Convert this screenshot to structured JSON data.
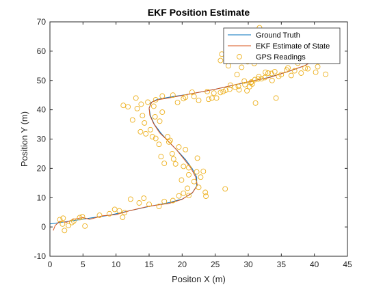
{
  "chart_data": {
    "type": "line",
    "title": "EKF Position Estimate",
    "xlabel": "Positon X (m)",
    "ylabel": "Position Y (m)",
    "xlim": [
      0,
      45
    ],
    "ylim": [
      -10,
      70
    ],
    "xticks": [
      0,
      5,
      10,
      15,
      20,
      25,
      30,
      35,
      40,
      45
    ],
    "yticks": [
      -10,
      0,
      10,
      20,
      30,
      40,
      50,
      60,
      70
    ],
    "grid": false,
    "legend_position": "top-right",
    "series": [
      {
        "name": "Ground Truth",
        "kind": "line",
        "color": "#0072BD",
        "x": [
          0,
          3,
          6,
          9,
          12,
          15,
          18,
          20,
          21.5,
          22.2,
          22.2,
          21.5,
          20.5,
          19.3,
          18,
          16.8,
          15.8,
          15.2,
          15.0,
          15.3,
          16.2,
          18,
          21,
          25,
          29,
          33,
          36,
          38.5,
          40
        ],
        "y": [
          1,
          2,
          3,
          4,
          5.5,
          7,
          8.3,
          9.5,
          11.5,
          14,
          17,
          20,
          23,
          26,
          29,
          32,
          35,
          38,
          40.5,
          42.5,
          43.5,
          44.3,
          45.3,
          47,
          49,
          51,
          53,
          55,
          57
        ]
      },
      {
        "name": "EKF Estimate of State",
        "kind": "line",
        "color": "#D95319",
        "x": [
          0.5,
          0.8,
          1.5,
          2.5,
          3.5,
          5,
          6,
          8,
          10,
          12,
          15,
          18,
          20,
          21.6,
          22.3,
          22.0,
          21.3,
          20.3,
          19.2,
          17.9,
          16.6,
          15.7,
          15.1,
          15.0,
          15.4,
          16.3,
          18.2,
          21.2,
          25.2,
          29.2,
          33.2,
          36.2,
          38.6,
          40
        ],
        "y": [
          -1.2,
          0.5,
          2.0,
          1.6,
          2.6,
          3.2,
          2.6,
          3.8,
          4.2,
          5.5,
          7.1,
          8.0,
          9.4,
          11.8,
          14.2,
          17.2,
          20.2,
          23.1,
          26.2,
          29.3,
          32.1,
          35.2,
          38.1,
          40.6,
          42.6,
          43.4,
          44.1,
          45.4,
          47.1,
          49.2,
          51.0,
          53.2,
          55.1,
          57
        ]
      },
      {
        "name": "GPS Readings",
        "kind": "scatter",
        "color": "#EDB120",
        "x": [
          1.5,
          2.0,
          2.8,
          3.3,
          4.5,
          2.2,
          5.3,
          3.6,
          1.9,
          4.9,
          7.5,
          9.0,
          9.8,
          10.5,
          11.0,
          11.3,
          12.2,
          13.5,
          14.2,
          15.0,
          16.5,
          17.3,
          18.6,
          19.5,
          20.2,
          21.0,
          22.5,
          23.5,
          23.6,
          21.8,
          20.8,
          19.9,
          21.0,
          22.2,
          22.8,
          26.5,
          23.2,
          20.2,
          19.0,
          18.7,
          17.3,
          16.8,
          18.5,
          21.0,
          22.3,
          20.5,
          19.5,
          18.0,
          16.5,
          15.5,
          14.5,
          16.0,
          17.8,
          18.2,
          15.2,
          14.3,
          16.6,
          15.9,
          17.0,
          14.0,
          13.2,
          13.8,
          15.7,
          14.8,
          11.1,
          11.8,
          13.0,
          16.0,
          17.0,
          18.6,
          20.2,
          21.8,
          22.5,
          23.8,
          24.8,
          26.6,
          28.0,
          29.5,
          30.4,
          31.5,
          32.5,
          33.5,
          34.6,
          35.8,
          37.0,
          38.6,
          40.2,
          41.7,
          19.3,
          20.5,
          21.5,
          24.5,
          25.8,
          27.3,
          28.5,
          29.4,
          30.2,
          31.0,
          32.0,
          33.0,
          34.0,
          35.0,
          36.0,
          37.5,
          38.0,
          39.0,
          40.5,
          24.0,
          25.2,
          26.2,
          27.2,
          28.6,
          29.8,
          30.6,
          31.6,
          32.6,
          33.6,
          28.3,
          29.0,
          29.9,
          30.9,
          31.9,
          32.2,
          33.2,
          31.7,
          27.0,
          25.8,
          26.0,
          27.4,
          28.6,
          30.2,
          31.2,
          30.5,
          34.2,
          36.5,
          31.1,
          13.7,
          12.5
        ],
        "y": [
          2.5,
          3.0,
          0.5,
          1.5,
          3.2,
          -1.2,
          0.3,
          2.0,
          1.0,
          3.5,
          4.0,
          4.5,
          6.0,
          5.5,
          3.3,
          4.9,
          9.5,
          8.2,
          9.8,
          7.7,
          7.0,
          8.7,
          9.0,
          10.6,
          11.5,
          10.7,
          13.5,
          11.8,
          10.5,
          15.5,
          13.2,
          16.0,
          17.8,
          18.8,
          17.0,
          13.0,
          19.0,
          20.7,
          21.5,
          23.2,
          21.7,
          24.0,
          25.0,
          20.2,
          23.5,
          26.4,
          27.3,
          29.0,
          28.2,
          30.8,
          31.8,
          30.2,
          30.8,
          29.5,
          33.2,
          35.5,
          36.1,
          37.6,
          39.2,
          38.0,
          40.4,
          41.9,
          41.2,
          42.6,
          41.5,
          41.0,
          44.0,
          43.4,
          44.7,
          45.0,
          43.8,
          44.5,
          43.2,
          46.2,
          45.7,
          46.7,
          47.7,
          48.6,
          49.3,
          50.5,
          51.0,
          52.4,
          51.4,
          53.6,
          53.3,
          54.2,
          52.8,
          52.1,
          42.5,
          44.3,
          46.0,
          44.0,
          45.9,
          48.4,
          48.0,
          49.8,
          47.9,
          50.3,
          50.6,
          52.5,
          53.0,
          52.0,
          54.3,
          55.9,
          52.5,
          54.0,
          54.7,
          43.6,
          44.0,
          46.2,
          47.0,
          46.8,
          46.5,
          48.8,
          51.3,
          52.8,
          50.0,
          52.0,
          54.5,
          56.4,
          55.8,
          57.6,
          60.0,
          58.5,
          68.0,
          55.0,
          56.8,
          59.0,
          59.6,
          61.3,
          63.0,
          62.3,
          49.5,
          44.0,
          51.7,
          42.3,
          32.5,
          36.5
        ]
      }
    ]
  }
}
